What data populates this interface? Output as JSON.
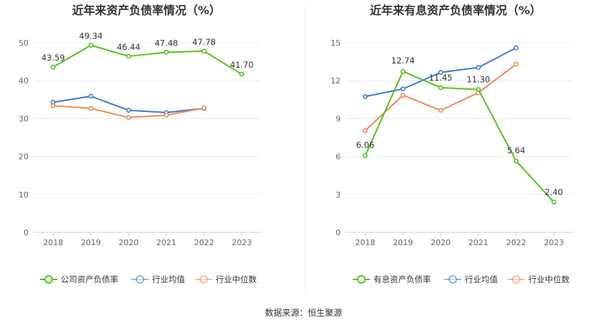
{
  "chart_data": [
    {
      "type": "line",
      "title": "近年来资产负债率情况（%）",
      "categories": [
        "2018",
        "2019",
        "2020",
        "2021",
        "2022",
        "2023"
      ],
      "ylim": [
        0,
        50
      ],
      "yticks": [
        "0",
        "10",
        "20",
        "30",
        "40",
        "50"
      ],
      "grid": true,
      "legend_position": "bottom",
      "series": [
        {
          "name": "公司资产负债率",
          "color": "#52c41a",
          "values": [
            43.59,
            49.34,
            46.44,
            47.48,
            47.78,
            41.7
          ],
          "labels": [
            "43.59",
            "49.34",
            "46.44",
            "47.48",
            "47.78",
            "41.70"
          ]
        },
        {
          "name": "行业均值",
          "color": "#3a7bd5",
          "values": [
            34.3,
            35.9,
            32.2,
            31.6,
            32.7,
            null
          ]
        },
        {
          "name": "行业中位数",
          "color": "#f0875a",
          "values": [
            33.4,
            32.7,
            30.3,
            30.9,
            32.8,
            null
          ]
        }
      ]
    },
    {
      "type": "line",
      "title": "近年来有息资产负债率情况（%）",
      "categories": [
        "2018",
        "2019",
        "2020",
        "2021",
        "2022",
        "2023"
      ],
      "ylim": [
        0,
        15
      ],
      "yticks": [
        "0",
        "3",
        "6",
        "9",
        "12",
        "15"
      ],
      "grid": true,
      "legend_position": "bottom",
      "series": [
        {
          "name": "有息资产负债率",
          "color": "#52c41a",
          "values": [
            6.06,
            12.74,
            11.45,
            11.3,
            5.64,
            2.4
          ],
          "labels": [
            "6.06",
            "12.74",
            "11.45",
            "11.30",
            "5.64",
            "2.40"
          ]
        },
        {
          "name": "行业均值",
          "color": "#3a7bd5",
          "values": [
            10.75,
            11.35,
            12.65,
            13.05,
            14.6,
            null
          ]
        },
        {
          "name": "行业中位数",
          "color": "#f0875a",
          "values": [
            8.05,
            10.85,
            9.65,
            11.05,
            13.3,
            null
          ]
        }
      ]
    }
  ],
  "footer": {
    "source": "数据来源：恒生聚源"
  }
}
